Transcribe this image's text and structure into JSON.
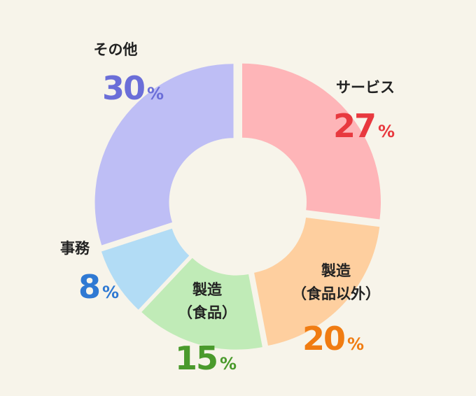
{
  "chart_data": {
    "type": "pie",
    "donut": true,
    "categories": [
      "サービス",
      "製造（食品以外）",
      "製造（食品）",
      "事務",
      "その他"
    ],
    "values": [
      27,
      20,
      15,
      8,
      30
    ],
    "unit": "%",
    "labels": [
      {
        "lines": [
          "サービス"
        ],
        "value_text": "27",
        "unit_text": "%"
      },
      {
        "lines": [
          "製造",
          "（食品以外）"
        ],
        "value_text": "20",
        "unit_text": "%"
      },
      {
        "lines": [
          "製造",
          "（食品）"
        ],
        "value_text": "15",
        "unit_text": "%"
      },
      {
        "lines": [
          "事務"
        ],
        "value_text": "8",
        "unit_text": "%"
      },
      {
        "lines": [
          "その他"
        ],
        "value_text": "30",
        "unit_text": "%"
      }
    ],
    "colors": {
      "slices": [
        "#feb5b8",
        "#fecf9f",
        "#c0ebb7",
        "#b2dcf5",
        "#bebef5"
      ],
      "values": [
        "#e8393f",
        "#f07c12",
        "#4a9a2c",
        "#2f79d3",
        "#6b6ed8"
      ],
      "background": "#f7f4ea",
      "label_text": "#222222"
    },
    "legend": "none",
    "grid": false
  }
}
